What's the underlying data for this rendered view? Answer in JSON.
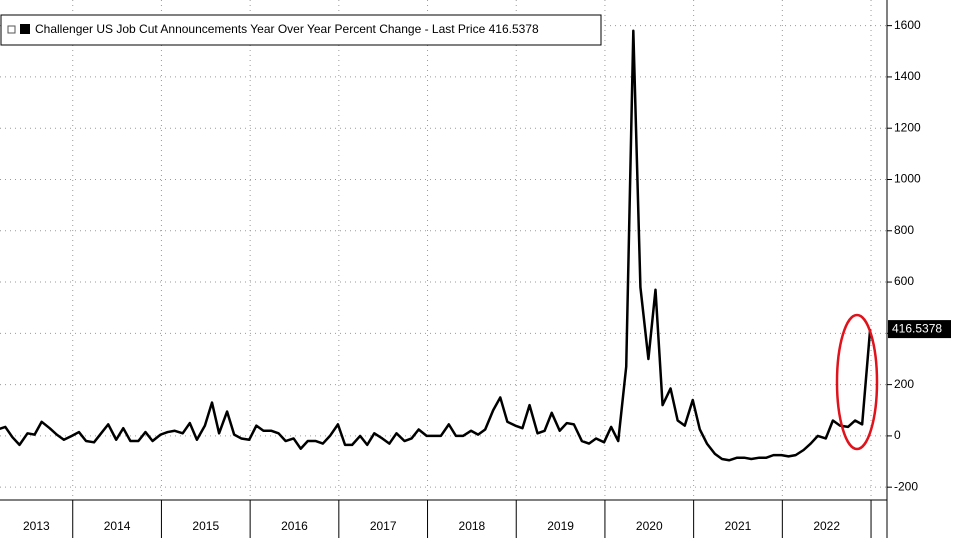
{
  "chart_data": {
    "type": "line",
    "legend": "Challenger US Job Cut Announcements Year Over Year Percent Change - Last Price 416.5378",
    "x": [
      2013.15,
      2013.24,
      2013.32,
      2013.4,
      2013.49,
      2013.57,
      2013.65,
      2013.74,
      2013.82,
      2013.9,
      2013.99,
      2014.07,
      2014.15,
      2014.24,
      2014.32,
      2014.4,
      2014.49,
      2014.57,
      2014.65,
      2014.74,
      2014.82,
      2014.9,
      2014.99,
      2015.07,
      2015.15,
      2015.24,
      2015.32,
      2015.4,
      2015.49,
      2015.57,
      2015.65,
      2015.74,
      2015.82,
      2015.9,
      2015.99,
      2016.07,
      2016.15,
      2016.24,
      2016.32,
      2016.4,
      2016.49,
      2016.57,
      2016.65,
      2016.74,
      2016.82,
      2016.9,
      2016.99,
      2017.07,
      2017.15,
      2017.24,
      2017.32,
      2017.4,
      2017.49,
      2017.57,
      2017.65,
      2017.74,
      2017.82,
      2017.9,
      2017.99,
      2018.07,
      2018.15,
      2018.24,
      2018.32,
      2018.4,
      2018.49,
      2018.57,
      2018.65,
      2018.74,
      2018.82,
      2018.9,
      2018.99,
      2019.07,
      2019.15,
      2019.24,
      2019.32,
      2019.4,
      2019.49,
      2019.57,
      2019.65,
      2019.74,
      2019.82,
      2019.9,
      2019.99,
      2020.07,
      2020.15,
      2020.24,
      2020.32,
      2020.4,
      2020.49,
      2020.57,
      2020.65,
      2020.74,
      2020.82,
      2020.9,
      2020.99,
      2021.07,
      2021.15,
      2021.24,
      2021.32,
      2021.4,
      2021.49,
      2021.57,
      2021.65,
      2021.74,
      2021.82,
      2021.9,
      2021.99,
      2022.07,
      2022.15,
      2022.24,
      2022.32,
      2022.4,
      2022.49,
      2022.57,
      2022.65,
      2022.74,
      2022.82,
      2022.9,
      2022.99
    ],
    "series": [
      {
        "name": "Challenger US Job Cut Announcements Year Over Year Percent Change",
        "color": "#000000",
        "values": [
          25,
          35,
          -5,
          -35,
          10,
          5,
          55,
          30,
          5,
          -15,
          0,
          15,
          -20,
          -25,
          10,
          45,
          -15,
          30,
          -20,
          -20,
          15,
          -20,
          5,
          15,
          20,
          10,
          50,
          -15,
          40,
          130,
          10,
          95,
          5,
          -10,
          -15,
          40,
          20,
          20,
          10,
          -20,
          -10,
          -50,
          -20,
          -20,
          -30,
          0,
          45,
          -35,
          -35,
          0,
          -35,
          10,
          -10,
          -30,
          10,
          -20,
          -10,
          25,
          0,
          0,
          0,
          45,
          0,
          0,
          20,
          5,
          25,
          100,
          150,
          55,
          40,
          30,
          120,
          10,
          20,
          90,
          20,
          50,
          45,
          -20,
          -30,
          -10,
          -25,
          35,
          -20,
          270,
          1580,
          580,
          300,
          570,
          120,
          185,
          60,
          40,
          140,
          25,
          -30,
          -70,
          -90,
          -95,
          -85,
          -85,
          -90,
          -85,
          -85,
          -75,
          -75,
          -80,
          -75,
          -55,
          -30,
          0,
          -10,
          60,
          40,
          35,
          60,
          45,
          416.5378
        ]
      }
    ],
    "annotations": [
      {
        "text": "416.5378"
      }
    ],
    "xlim": [
      2013.18,
      2023.18
    ],
    "xticks": [
      {
        "value": 2013.5,
        "label": "2013"
      },
      {
        "value": 2014.5,
        "label": "2014"
      },
      {
        "value": 2015.5,
        "label": "2015"
      },
      {
        "value": 2016.5,
        "label": "2016"
      },
      {
        "value": 2017.5,
        "label": "2017"
      },
      {
        "value": 2018.5,
        "label": "2018"
      },
      {
        "value": 2019.5,
        "label": "2019"
      },
      {
        "value": 2020.5,
        "label": "2020"
      },
      {
        "value": 2021.5,
        "label": "2021"
      },
      {
        "value": 2022.5,
        "label": "2022"
      }
    ],
    "ylim": [
      -250,
      1700
    ],
    "yticks": [
      -200,
      0,
      200,
      400,
      600,
      800,
      1000,
      1200,
      1400,
      1600
    ],
    "grid": true
  }
}
